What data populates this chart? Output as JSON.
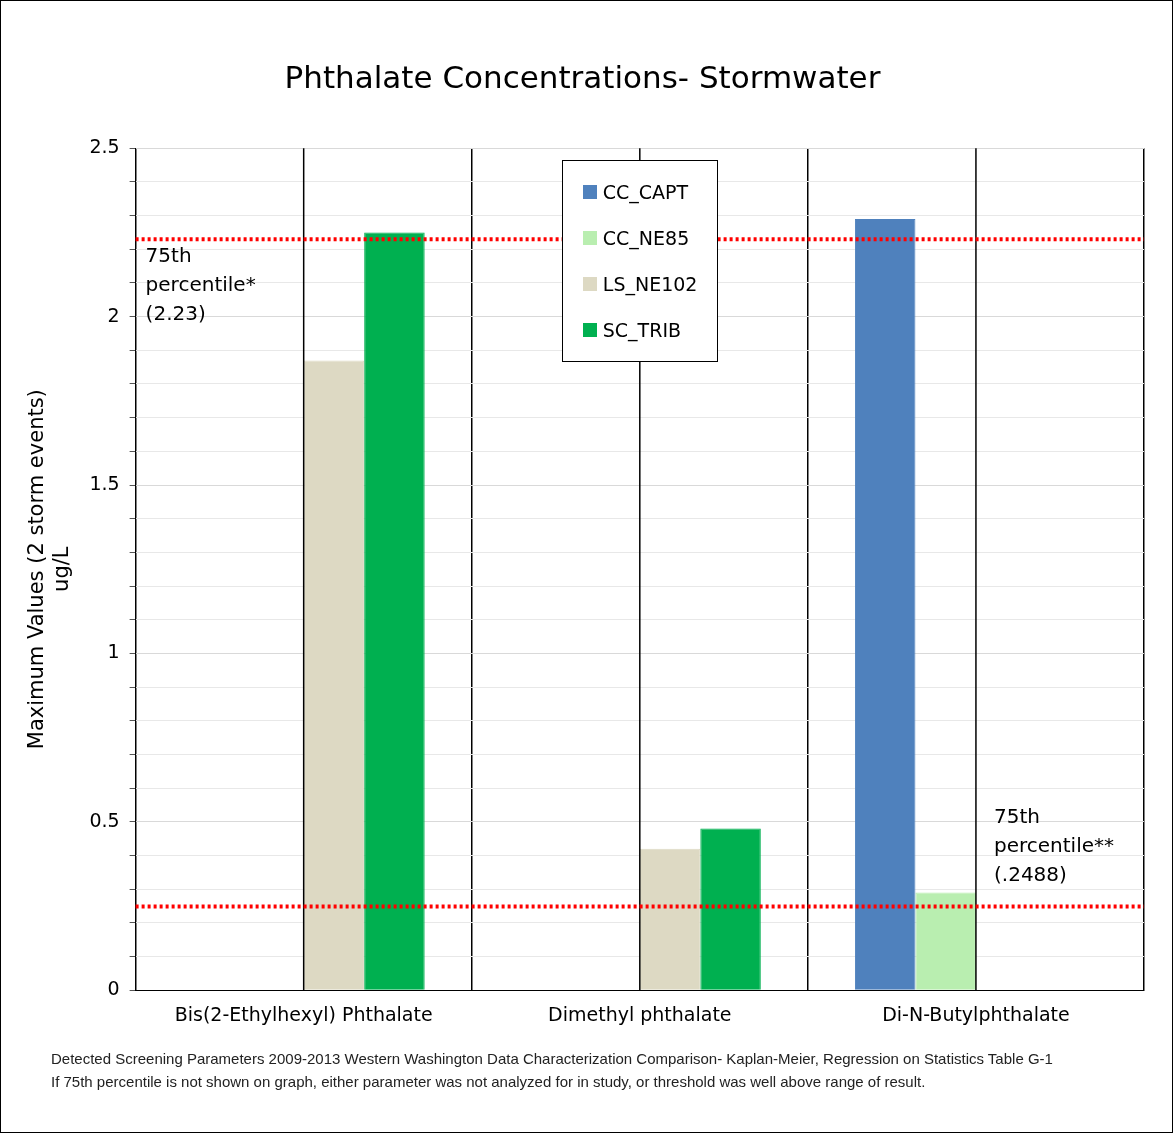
{
  "chart_data": {
    "type": "bar",
    "title": "Phthalate Concentrations- Stormwater",
    "ylabel": "Maximum Values (2 storm events)\nug/L",
    "categories": [
      "Bis(2-Ethylhexyl) Phthalate",
      "Dimethyl phthalate",
      "Di-N-Butylphthalate"
    ],
    "series": [
      {
        "name": "CC_CAPT",
        "color": "#4f81bd",
        "values": [
          null,
          null,
          2.29
        ]
      },
      {
        "name": "CC_NE85",
        "color": "#b9eeb0",
        "values": [
          null,
          null,
          0.29
        ]
      },
      {
        "name": "LS_NE102",
        "color": "#ddd9c3",
        "values": [
          1.87,
          0.42,
          null
        ]
      },
      {
        "name": "SC_TRIB",
        "color": "#00b050",
        "values": [
          2.25,
          0.48,
          null
        ]
      }
    ],
    "ylim": [
      0,
      2.5
    ],
    "yticks": [
      0,
      {
        "value": 0.1,
        "label": null
      },
      {
        "value": 0.2,
        "label": null
      },
      {
        "value": 0.3,
        "label": null
      },
      {
        "value": 0.4,
        "label": null
      },
      0.5,
      {
        "value": 0.6,
        "label": null
      },
      {
        "value": 0.7,
        "label": null
      },
      {
        "value": 0.8,
        "label": null
      },
      {
        "value": 0.9,
        "label": null
      },
      1,
      {
        "value": 1.1,
        "label": null
      },
      {
        "value": 1.2,
        "label": null
      },
      {
        "value": 1.3,
        "label": null
      },
      {
        "value": 1.4,
        "label": null
      },
      1.5,
      {
        "value": 1.6,
        "label": null
      },
      {
        "value": 1.7,
        "label": null
      },
      {
        "value": 1.8,
        "label": null
      },
      {
        "value": 1.9,
        "label": null
      },
      2,
      {
        "value": 2.1,
        "label": null
      },
      {
        "value": 2.2,
        "label": null
      },
      {
        "value": 2.3,
        "label": null
      },
      {
        "value": 2.4,
        "label": null
      },
      2.5
    ],
    "grid": true,
    "legend": "top",
    "ref_lines": [
      {
        "axis": "y",
        "value": 2.23,
        "label": "75th\npercentile*\n(2.23)",
        "color": "#ff0000",
        "line_style": "dotted"
      },
      {
        "axis": "y",
        "value": 0.2488,
        "label": "75th\npercentile**\n(.2488)",
        "color": "#ff0000",
        "line_style": "dotted"
      }
    ],
    "annotations": [
      "Detected Screening Parameters 2009-2013 Western Washington Data Characterization Comparison- Kaplan-Meier, Regression on Statistics Table G-1",
      "If 75th percentile is not shown on graph, either parameter was not analyzed for in study, or threshold was well above range of result."
    ]
  }
}
